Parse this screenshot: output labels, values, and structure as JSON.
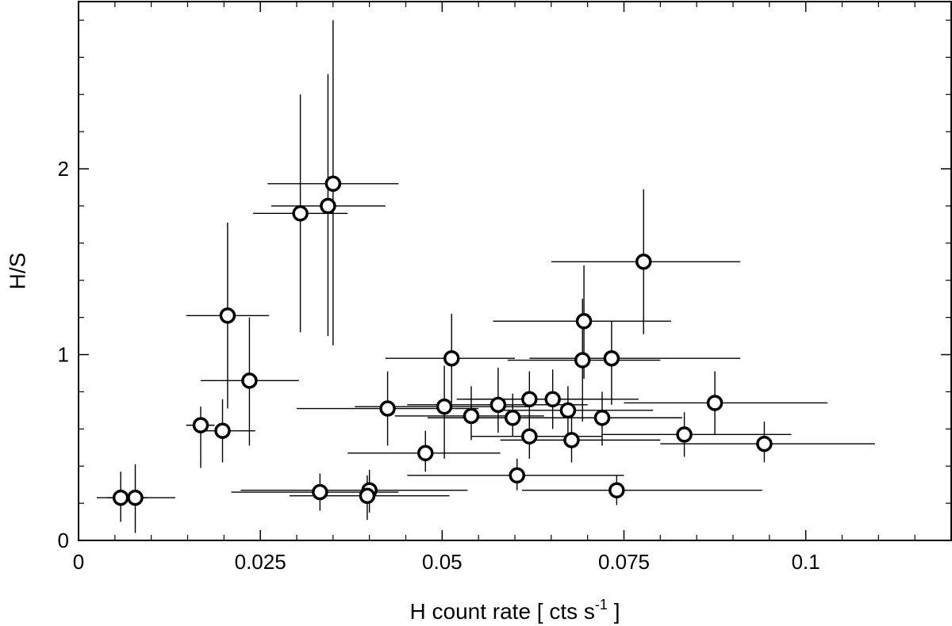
{
  "chart_data": {
    "type": "scatter",
    "title": "",
    "xlabel": "H count rate [ cts s",
    "xlabel_sup": "-1",
    "xlabel_suffix": " ]",
    "ylabel": "H/S",
    "xlim": [
      0,
      0.12
    ],
    "ylim": [
      0,
      2.9
    ],
    "grid": false,
    "legend": "none",
    "x_ticks": [
      {
        "value": 0,
        "label": "0"
      },
      {
        "value": 0.025,
        "label": "0.025"
      },
      {
        "value": 0.05,
        "label": "0.05"
      },
      {
        "value": 0.075,
        "label": "0.075"
      },
      {
        "value": 0.1,
        "label": "0.1"
      }
    ],
    "x_minor_ticks": [
      0.005,
      0.01,
      0.015,
      0.02,
      0.03,
      0.035,
      0.04,
      0.045,
      0.055,
      0.06,
      0.065,
      0.07,
      0.08,
      0.085,
      0.09,
      0.095,
      0.105,
      0.11,
      0.115
    ],
    "y_ticks": [
      {
        "value": 0,
        "label": "0"
      },
      {
        "value": 1,
        "label": "1"
      },
      {
        "value": 2,
        "label": "2"
      }
    ],
    "y_minor_ticks": [
      0.2,
      0.4,
      0.6,
      0.8,
      1.2,
      1.4,
      1.6,
      1.8,
      2.2,
      2.4,
      2.6,
      2.8
    ],
    "marker_color": "#000000",
    "marker_fill": "#ffffff",
    "points": [
      {
        "x": 0.0058,
        "y": 0.23,
        "xlo": 0.0025,
        "xhi": 0.0095,
        "ylo": 0.1,
        "yhi": 0.37
      },
      {
        "x": 0.0078,
        "y": 0.23,
        "xlo": 0.004,
        "xhi": 0.0133,
        "ylo": 0.04,
        "yhi": 0.41
      },
      {
        "x": 0.0168,
        "y": 0.62,
        "xlo": 0.0148,
        "xhi": 0.0187,
        "ylo": 0.39,
        "yhi": 0.72
      },
      {
        "x": 0.0198,
        "y": 0.59,
        "xlo": 0.0168,
        "xhi": 0.0243,
        "ylo": 0.42,
        "yhi": 0.76
      },
      {
        "x": 0.0205,
        "y": 1.21,
        "xlo": 0.0148,
        "xhi": 0.0262,
        "ylo": 0.71,
        "yhi": 1.71
      },
      {
        "x": 0.0235,
        "y": 0.86,
        "xlo": 0.0168,
        "xhi": 0.0303,
        "ylo": 0.51,
        "yhi": 1.2
      },
      {
        "x": 0.0305,
        "y": 1.76,
        "xlo": 0.024,
        "xhi": 0.037,
        "ylo": 1.12,
        "yhi": 2.4
      },
      {
        "x": 0.0343,
        "y": 1.8,
        "xlo": 0.0265,
        "xhi": 0.0422,
        "ylo": 1.1,
        "yhi": 2.51
      },
      {
        "x": 0.035,
        "y": 1.92,
        "xlo": 0.026,
        "xhi": 0.044,
        "ylo": 1.05,
        "yhi": 2.8
      },
      {
        "x": 0.0332,
        "y": 0.26,
        "xlo": 0.021,
        "xhi": 0.044,
        "ylo": 0.16,
        "yhi": 0.36
      },
      {
        "x": 0.04,
        "y": 0.27,
        "xlo": 0.0223,
        "xhi": 0.0535,
        "ylo": 0.15,
        "yhi": 0.38
      },
      {
        "x": 0.0397,
        "y": 0.24,
        "xlo": 0.029,
        "xhi": 0.051,
        "ylo": 0.11,
        "yhi": 0.35
      },
      {
        "x": 0.0425,
        "y": 0.71,
        "xlo": 0.03,
        "xhi": 0.055,
        "ylo": 0.51,
        "yhi": 0.91
      },
      {
        "x": 0.0477,
        "y": 0.47,
        "xlo": 0.037,
        "xhi": 0.058,
        "ylo": 0.37,
        "yhi": 0.59
      },
      {
        "x": 0.0503,
        "y": 0.72,
        "xlo": 0.038,
        "xhi": 0.0622,
        "ylo": 0.44,
        "yhi": 0.94
      },
      {
        "x": 0.0513,
        "y": 0.98,
        "xlo": 0.0422,
        "xhi": 0.06,
        "ylo": 0.74,
        "yhi": 1.22
      },
      {
        "x": 0.054,
        "y": 0.67,
        "xlo": 0.0435,
        "xhi": 0.064,
        "ylo": 0.54,
        "yhi": 0.83
      },
      {
        "x": 0.0577,
        "y": 0.73,
        "xlo": 0.0452,
        "xhi": 0.07,
        "ylo": 0.58,
        "yhi": 0.93
      },
      {
        "x": 0.0597,
        "y": 0.66,
        "xlo": 0.048,
        "xhi": 0.072,
        "ylo": 0.56,
        "yhi": 0.79
      },
      {
        "x": 0.0603,
        "y": 0.35,
        "xlo": 0.0452,
        "xhi": 0.075,
        "ylo": 0.27,
        "yhi": 0.44
      },
      {
        "x": 0.062,
        "y": 0.76,
        "xlo": 0.052,
        "xhi": 0.073,
        "ylo": 0.61,
        "yhi": 0.91
      },
      {
        "x": 0.062,
        "y": 0.56,
        "xlo": 0.054,
        "xhi": 0.072,
        "ylo": 0.44,
        "yhi": 0.68
      },
      {
        "x": 0.0652,
        "y": 0.76,
        "xlo": 0.053,
        "xhi": 0.077,
        "ylo": 0.6,
        "yhi": 0.92
      },
      {
        "x": 0.0673,
        "y": 0.7,
        "xlo": 0.057,
        "xhi": 0.079,
        "ylo": 0.56,
        "yhi": 0.83
      },
      {
        "x": 0.0678,
        "y": 0.54,
        "xlo": 0.058,
        "xhi": 0.08,
        "ylo": 0.42,
        "yhi": 0.66
      },
      {
        "x": 0.0693,
        "y": 0.97,
        "xlo": 0.059,
        "xhi": 0.08,
        "ylo": 0.64,
        "yhi": 1.3
      },
      {
        "x": 0.0695,
        "y": 1.18,
        "xlo": 0.057,
        "xhi": 0.0815,
        "ylo": 0.87,
        "yhi": 1.48
      },
      {
        "x": 0.072,
        "y": 0.66,
        "xlo": 0.06,
        "xhi": 0.083,
        "ylo": 0.51,
        "yhi": 0.8
      },
      {
        "x": 0.0733,
        "y": 0.98,
        "xlo": 0.062,
        "xhi": 0.091,
        "ylo": 0.73,
        "yhi": 1.18
      },
      {
        "x": 0.074,
        "y": 0.27,
        "xlo": 0.061,
        "xhi": 0.094,
        "ylo": 0.19,
        "yhi": 0.35
      },
      {
        "x": 0.0777,
        "y": 1.5,
        "xlo": 0.065,
        "xhi": 0.091,
        "ylo": 1.11,
        "yhi": 1.89
      },
      {
        "x": 0.0833,
        "y": 0.57,
        "xlo": 0.072,
        "xhi": 0.098,
        "ylo": 0.45,
        "yhi": 0.69
      },
      {
        "x": 0.0875,
        "y": 0.74,
        "xlo": 0.075,
        "xhi": 0.103,
        "ylo": 0.57,
        "yhi": 0.91
      },
      {
        "x": 0.0943,
        "y": 0.52,
        "xlo": 0.08,
        "xhi": 0.1095,
        "ylo": 0.42,
        "yhi": 0.64
      }
    ]
  }
}
